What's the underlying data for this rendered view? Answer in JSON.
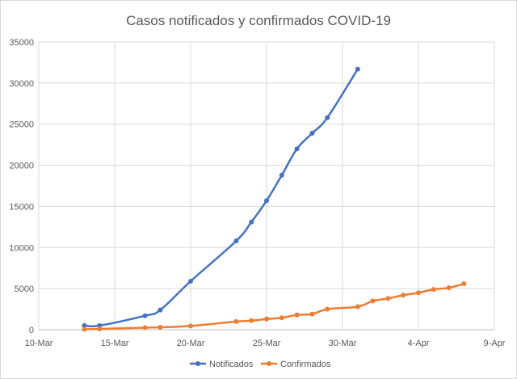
{
  "chart_data": {
    "type": "line",
    "title": "Casos notificados y confirmados COVID-19",
    "xlabel": "",
    "ylabel": "",
    "x_axis": {
      "type": "date",
      "min": "2020-03-10",
      "max": "2020-04-09",
      "tick_labels": [
        "10-Mar",
        "15-Mar",
        "20-Mar",
        "25-Mar",
        "30-Mar",
        "4-Apr",
        "9-Apr"
      ],
      "tick_dates": [
        "2020-03-10",
        "2020-03-15",
        "2020-03-20",
        "2020-03-25",
        "2020-03-30",
        "2020-04-04",
        "2020-04-09"
      ]
    },
    "y_axis": {
      "min": 0,
      "max": 35000,
      "tick_labels": [
        "0",
        "5000",
        "10000",
        "15000",
        "20000",
        "25000",
        "30000",
        "35000"
      ],
      "tick_values": [
        0,
        5000,
        10000,
        15000,
        20000,
        25000,
        30000,
        35000
      ]
    },
    "grid": "vertical-and-horizontal",
    "legend_position": "bottom",
    "series": [
      {
        "name": "Notificados",
        "color": "#4472C4",
        "points": [
          [
            "2020-03-13",
            500
          ],
          [
            "2020-03-14",
            500
          ],
          [
            "2020-03-17",
            1700
          ],
          [
            "2020-03-18",
            2400
          ],
          [
            "2020-03-20",
            5900
          ],
          [
            "2020-03-23",
            10800
          ],
          [
            "2020-03-24",
            13100
          ],
          [
            "2020-03-25",
            15700
          ],
          [
            "2020-03-26",
            18800
          ],
          [
            "2020-03-27",
            22000
          ],
          [
            "2020-03-28",
            23900
          ],
          [
            "2020-03-29",
            25800
          ],
          [
            "2020-03-31",
            31700
          ]
        ]
      },
      {
        "name": "Confirmados",
        "color": "#ED7D31",
        "points": [
          [
            "2020-03-13",
            50
          ],
          [
            "2020-03-14",
            100
          ],
          [
            "2020-03-17",
            250
          ],
          [
            "2020-03-18",
            300
          ],
          [
            "2020-03-20",
            450
          ],
          [
            "2020-03-23",
            1000
          ],
          [
            "2020-03-24",
            1100
          ],
          [
            "2020-03-25",
            1300
          ],
          [
            "2020-03-26",
            1450
          ],
          [
            "2020-03-27",
            1800
          ],
          [
            "2020-03-28",
            1900
          ],
          [
            "2020-03-29",
            2500
          ],
          [
            "2020-03-31",
            2800
          ],
          [
            "2020-04-01",
            3500
          ],
          [
            "2020-04-02",
            3800
          ],
          [
            "2020-04-03",
            4200
          ],
          [
            "2020-04-04",
            4500
          ],
          [
            "2020-04-05",
            4900
          ],
          [
            "2020-04-06",
            5100
          ],
          [
            "2020-04-07",
            5600
          ]
        ]
      }
    ]
  }
}
